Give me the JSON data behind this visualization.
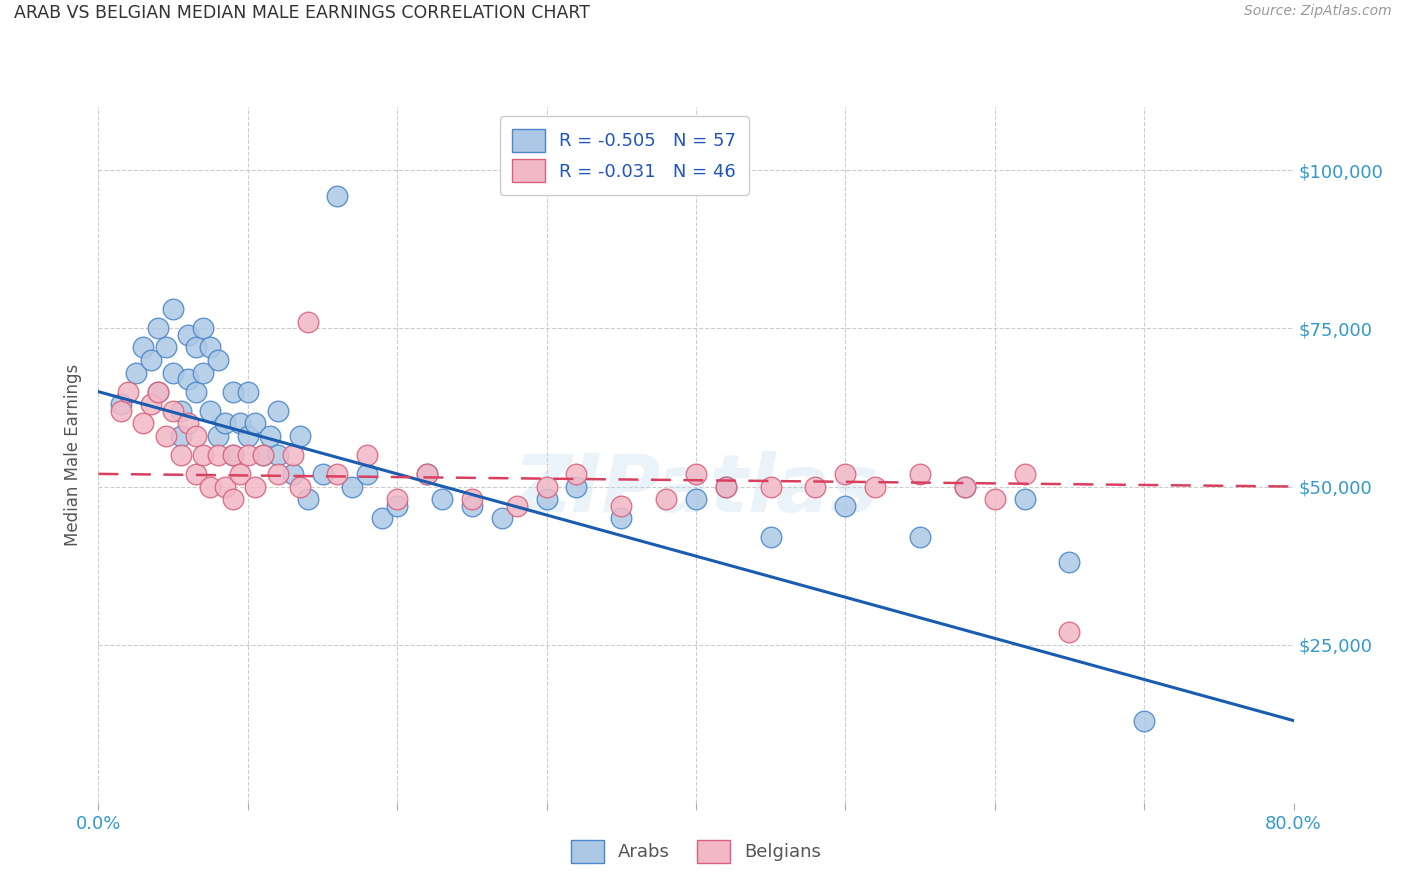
{
  "title": "ARAB VS BELGIAN MEDIAN MALE EARNINGS CORRELATION CHART",
  "source": "Source: ZipAtlas.com",
  "ylabel": "Median Male Earnings",
  "yticks": [
    0,
    25000,
    50000,
    75000,
    100000
  ],
  "ytick_labels": [
    "",
    "$25,000",
    "$50,000",
    "$75,000",
    "$100,000"
  ],
  "ylim": [
    0,
    110000
  ],
  "xlim": [
    0.0,
    0.8
  ],
  "arab_R": -0.505,
  "arab_N": 57,
  "belgian_R": -0.031,
  "belgian_N": 46,
  "arab_color": "#adc8e6",
  "arab_edge_color": "#4a86c8",
  "belgian_color": "#f2b8c6",
  "belgian_edge_color": "#d9607a",
  "arab_line_color": "#1a5cb0",
  "belgian_line_color": "#d94060",
  "watermark": "ZIPatlas",
  "background_color": "#ffffff",
  "arab_line_x0": 0.0,
  "arab_line_y0": 65000,
  "arab_line_x1": 0.8,
  "arab_line_y1": 13000,
  "belgian_line_x0": 0.0,
  "belgian_line_y0": 52000,
  "belgian_line_x1": 0.8,
  "belgian_line_y1": 50000,
  "arab_scatter_x": [
    0.015,
    0.025,
    0.03,
    0.035,
    0.04,
    0.04,
    0.045,
    0.05,
    0.05,
    0.055,
    0.055,
    0.06,
    0.06,
    0.065,
    0.065,
    0.07,
    0.07,
    0.075,
    0.075,
    0.08,
    0.08,
    0.085,
    0.09,
    0.09,
    0.095,
    0.1,
    0.1,
    0.105,
    0.11,
    0.115,
    0.12,
    0.12,
    0.13,
    0.135,
    0.14,
    0.15,
    0.16,
    0.17,
    0.18,
    0.19,
    0.2,
    0.22,
    0.23,
    0.25,
    0.27,
    0.3,
    0.32,
    0.35,
    0.4,
    0.42,
    0.45,
    0.5,
    0.55,
    0.58,
    0.62,
    0.65,
    0.7
  ],
  "arab_scatter_y": [
    63000,
    68000,
    72000,
    70000,
    75000,
    65000,
    72000,
    68000,
    78000,
    62000,
    58000,
    74000,
    67000,
    72000,
    65000,
    75000,
    68000,
    72000,
    62000,
    70000,
    58000,
    60000,
    65000,
    55000,
    60000,
    65000,
    58000,
    60000,
    55000,
    58000,
    62000,
    55000,
    52000,
    58000,
    48000,
    52000,
    96000,
    50000,
    52000,
    45000,
    47000,
    52000,
    48000,
    47000,
    45000,
    48000,
    50000,
    45000,
    48000,
    50000,
    42000,
    47000,
    42000,
    50000,
    48000,
    38000,
    13000
  ],
  "belgian_scatter_x": [
    0.015,
    0.02,
    0.03,
    0.035,
    0.04,
    0.045,
    0.05,
    0.055,
    0.06,
    0.065,
    0.065,
    0.07,
    0.075,
    0.08,
    0.085,
    0.09,
    0.09,
    0.095,
    0.1,
    0.105,
    0.11,
    0.12,
    0.13,
    0.135,
    0.14,
    0.16,
    0.18,
    0.2,
    0.22,
    0.25,
    0.28,
    0.3,
    0.32,
    0.35,
    0.38,
    0.4,
    0.42,
    0.45,
    0.48,
    0.5,
    0.52,
    0.55,
    0.58,
    0.6,
    0.62,
    0.65
  ],
  "belgian_scatter_y": [
    62000,
    65000,
    60000,
    63000,
    65000,
    58000,
    62000,
    55000,
    60000,
    58000,
    52000,
    55000,
    50000,
    55000,
    50000,
    55000,
    48000,
    52000,
    55000,
    50000,
    55000,
    52000,
    55000,
    50000,
    76000,
    52000,
    55000,
    48000,
    52000,
    48000,
    47000,
    50000,
    52000,
    47000,
    48000,
    52000,
    50000,
    50000,
    50000,
    52000,
    50000,
    52000,
    50000,
    48000,
    52000,
    27000
  ]
}
